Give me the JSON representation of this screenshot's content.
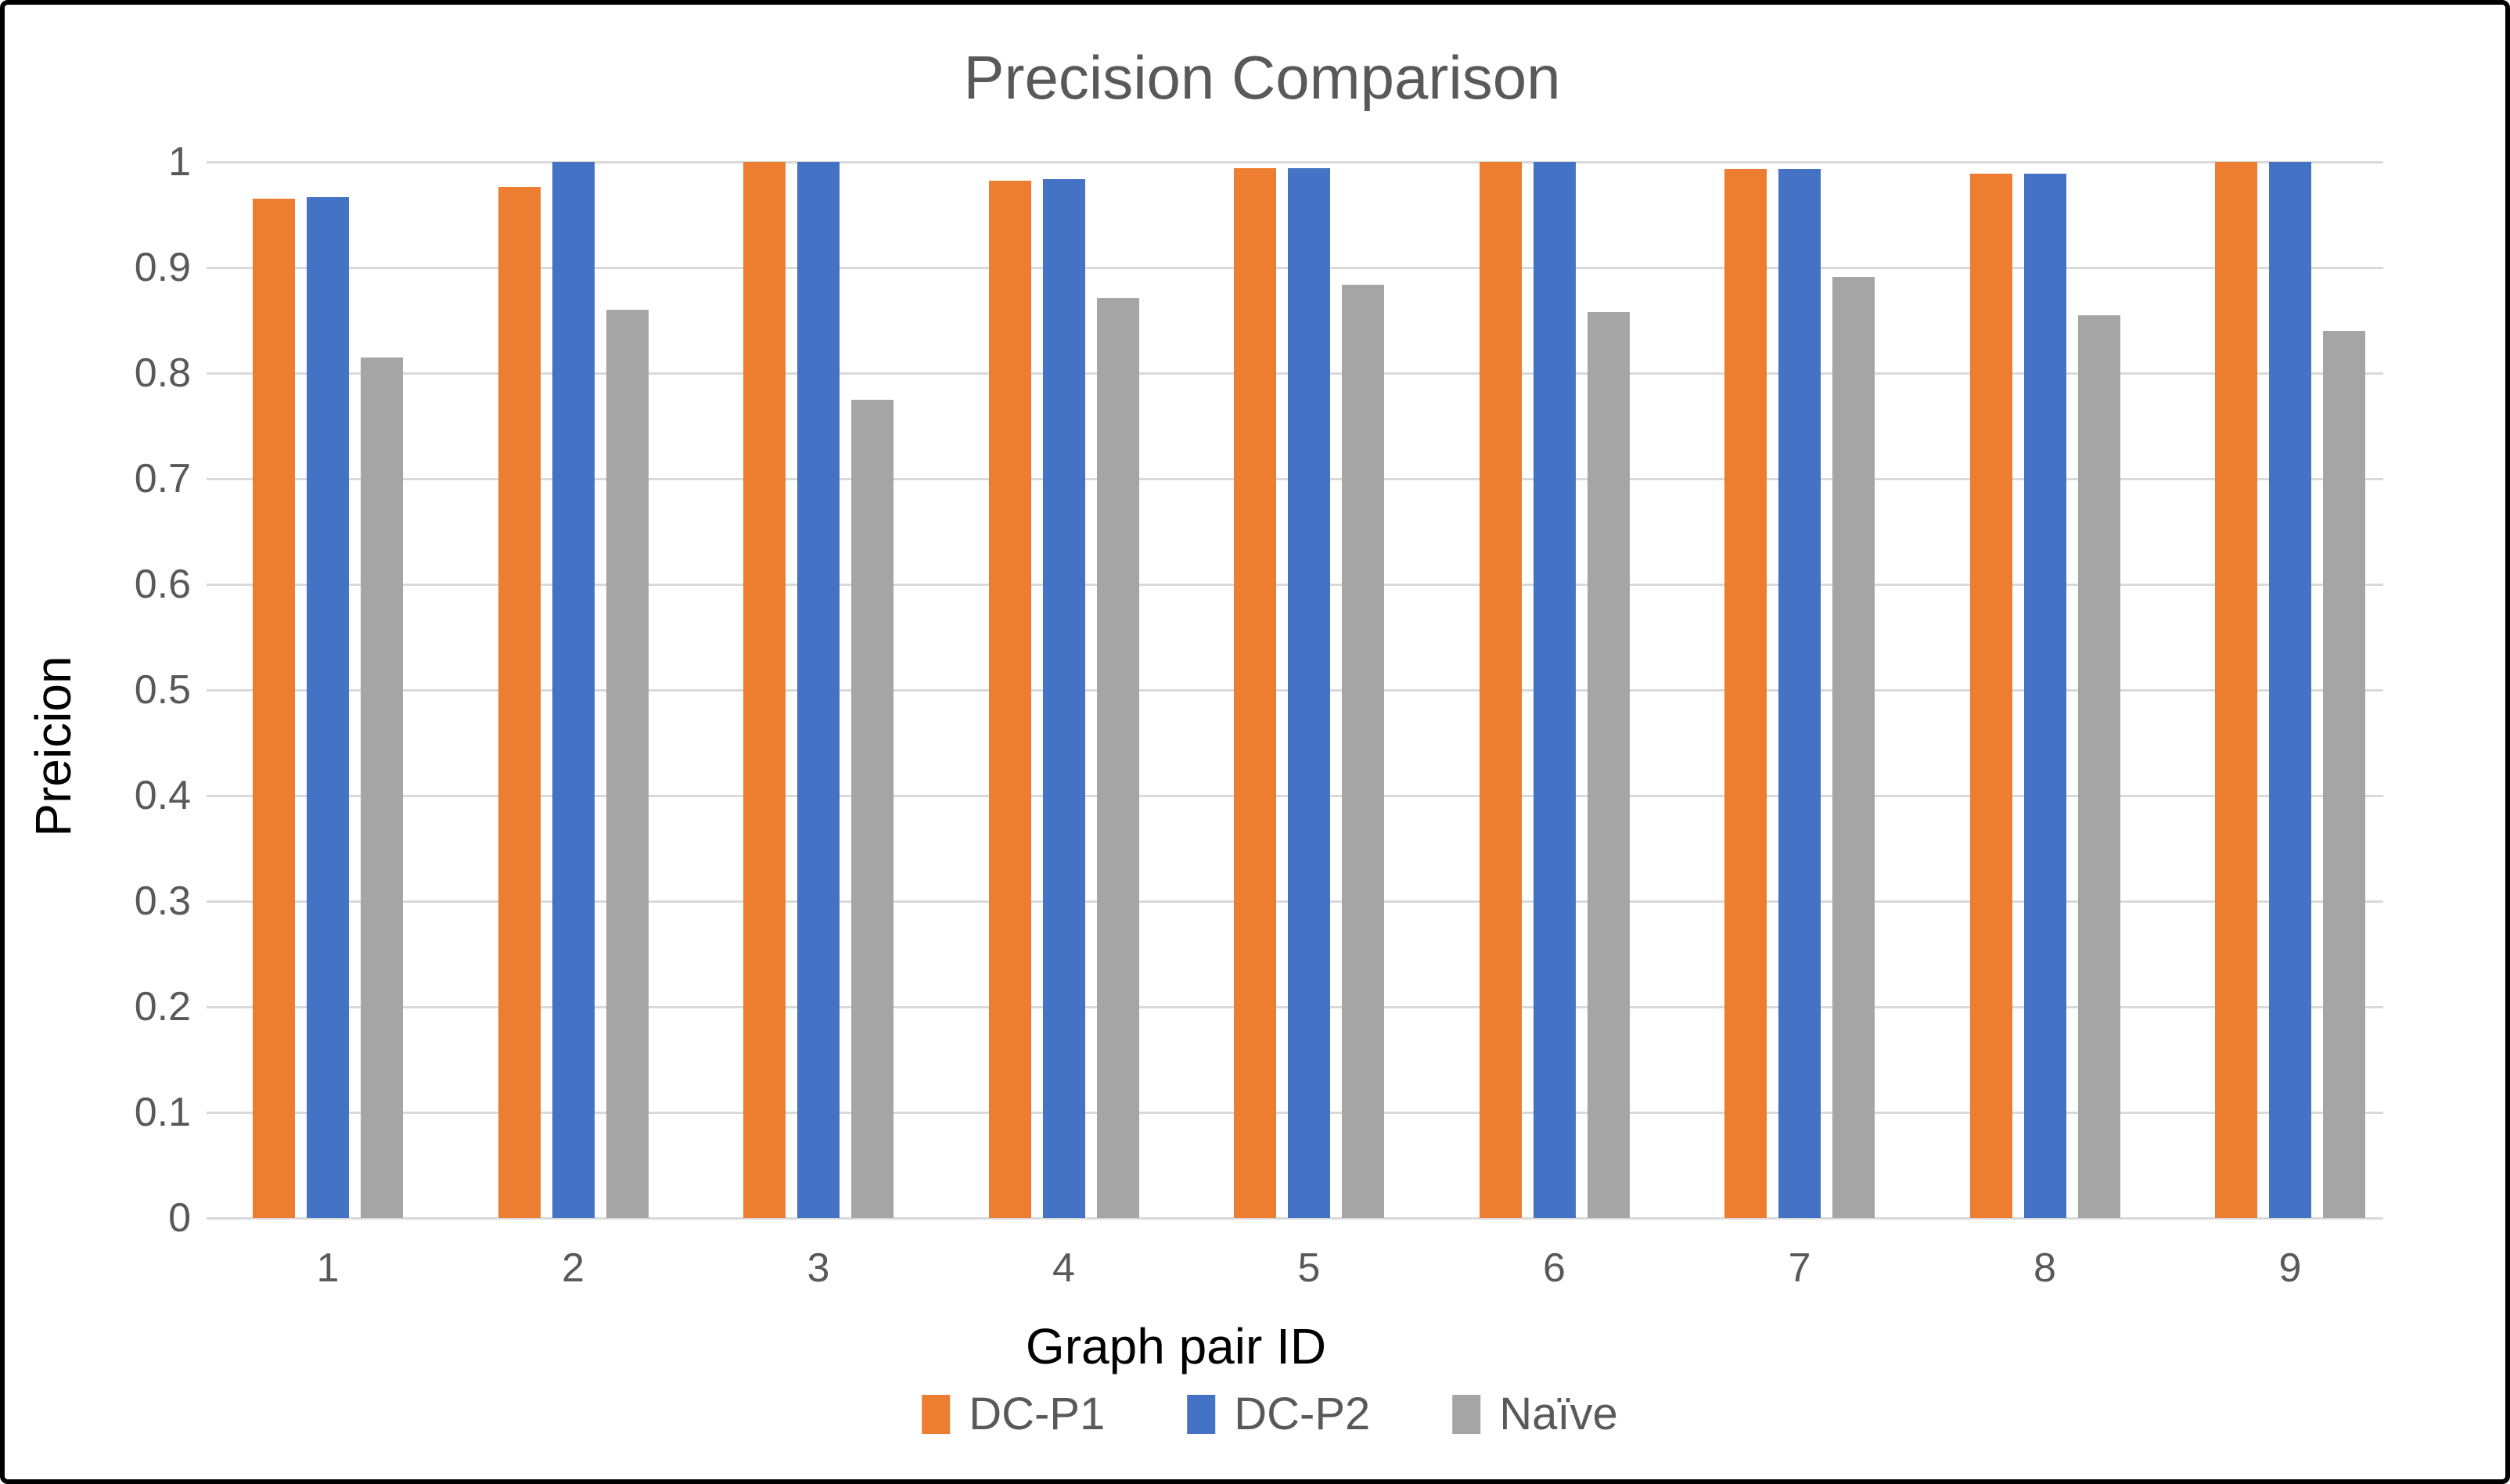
{
  "title": "Precision Comparison",
  "axes": {
    "y_title": "Preicion",
    "x_title": "Graph pair ID",
    "y_ticks": [
      "1",
      "0.9",
      "0.8",
      "0.7",
      "0.6",
      "0.5",
      "0.4",
      "0.3",
      "0.2",
      "0.1",
      "0"
    ]
  },
  "legend": {
    "items": [
      {
        "label": "DC-P1",
        "color": "#ED7D31"
      },
      {
        "label": "DC-P2",
        "color": "#4472C4"
      },
      {
        "label": "Naïve",
        "color": "#A5A5A5"
      }
    ]
  },
  "chart_data": {
    "type": "bar",
    "title": "Precision Comparison",
    "xlabel": "Graph pair ID",
    "ylabel": "Preicion",
    "ylim": [
      0,
      1
    ],
    "y_tick_step": 0.1,
    "grid": true,
    "legend_position": "bottom",
    "categories": [
      "1",
      "2",
      "3",
      "4",
      "5",
      "6",
      "7",
      "8",
      "9"
    ],
    "series": [
      {
        "name": "DC-P1",
        "color": "#ED7D31",
        "values": [
          0.965,
          0.976,
          1.0,
          0.982,
          0.994,
          1.0,
          0.993,
          0.989,
          1.0
        ]
      },
      {
        "name": "DC-P2",
        "color": "#4472C4",
        "values": [
          0.967,
          1.0,
          1.0,
          0.984,
          0.994,
          1.0,
          0.993,
          0.989,
          1.0
        ]
      },
      {
        "name": "Naïve",
        "color": "#A5A5A5",
        "values": [
          0.815,
          0.86,
          0.775,
          0.871,
          0.884,
          0.858,
          0.891,
          0.855,
          0.84
        ]
      }
    ]
  },
  "colors": {
    "background": "#FFFFFF",
    "frame_border": "#000000",
    "gridline": "#D9D9D9",
    "tick_label": "#595959",
    "title": "#595959",
    "axis_title": "#000000"
  }
}
